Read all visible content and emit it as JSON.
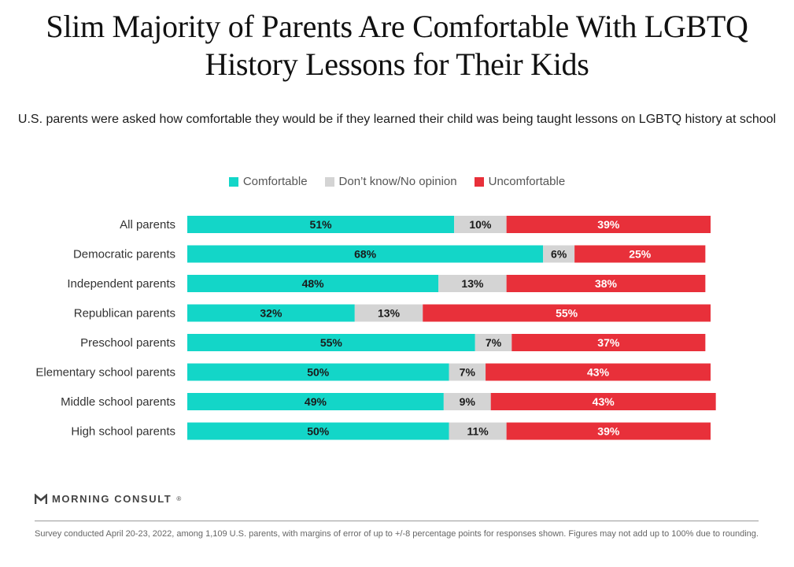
{
  "title": "Slim Majority of Parents Are Comfortable With LGBTQ History Lessons for Their Kids",
  "subtitle": "U.S. parents were asked how comfortable they would be if they learned their child was being taught lessons on LGBTQ history at school",
  "brand": "MORNING CONSULT",
  "brand_mark": "®",
  "footnote": "Survey conducted April 20-23, 2022, among 1,109 U.S. parents, with margins of error of up to +/-8 percentage points for responses shown. Figures may not add up to 100% due to rounding.",
  "chart_data": {
    "type": "bar",
    "orientation": "horizontal",
    "stacked": true,
    "categories": [
      "All parents",
      "Democratic parents",
      "Independent parents",
      "Republican parents",
      "Preschool parents",
      "Elementary school parents",
      "Middle school parents",
      "High school parents"
    ],
    "series": [
      {
        "name": "Comfortable",
        "color": "#13d6c8",
        "values": [
          51,
          68,
          48,
          32,
          55,
          50,
          49,
          50
        ]
      },
      {
        "name": "Don’t know/No opinion",
        "color": "#d4d4d4",
        "values": [
          10,
          6,
          13,
          13,
          7,
          7,
          9,
          11
        ]
      },
      {
        "name": "Uncomfortable",
        "color": "#e8303a",
        "values": [
          39,
          25,
          38,
          55,
          37,
          43,
          43,
          39
        ]
      }
    ],
    "value_suffix": "%",
    "legend_position": "top-center",
    "grid": false
  }
}
